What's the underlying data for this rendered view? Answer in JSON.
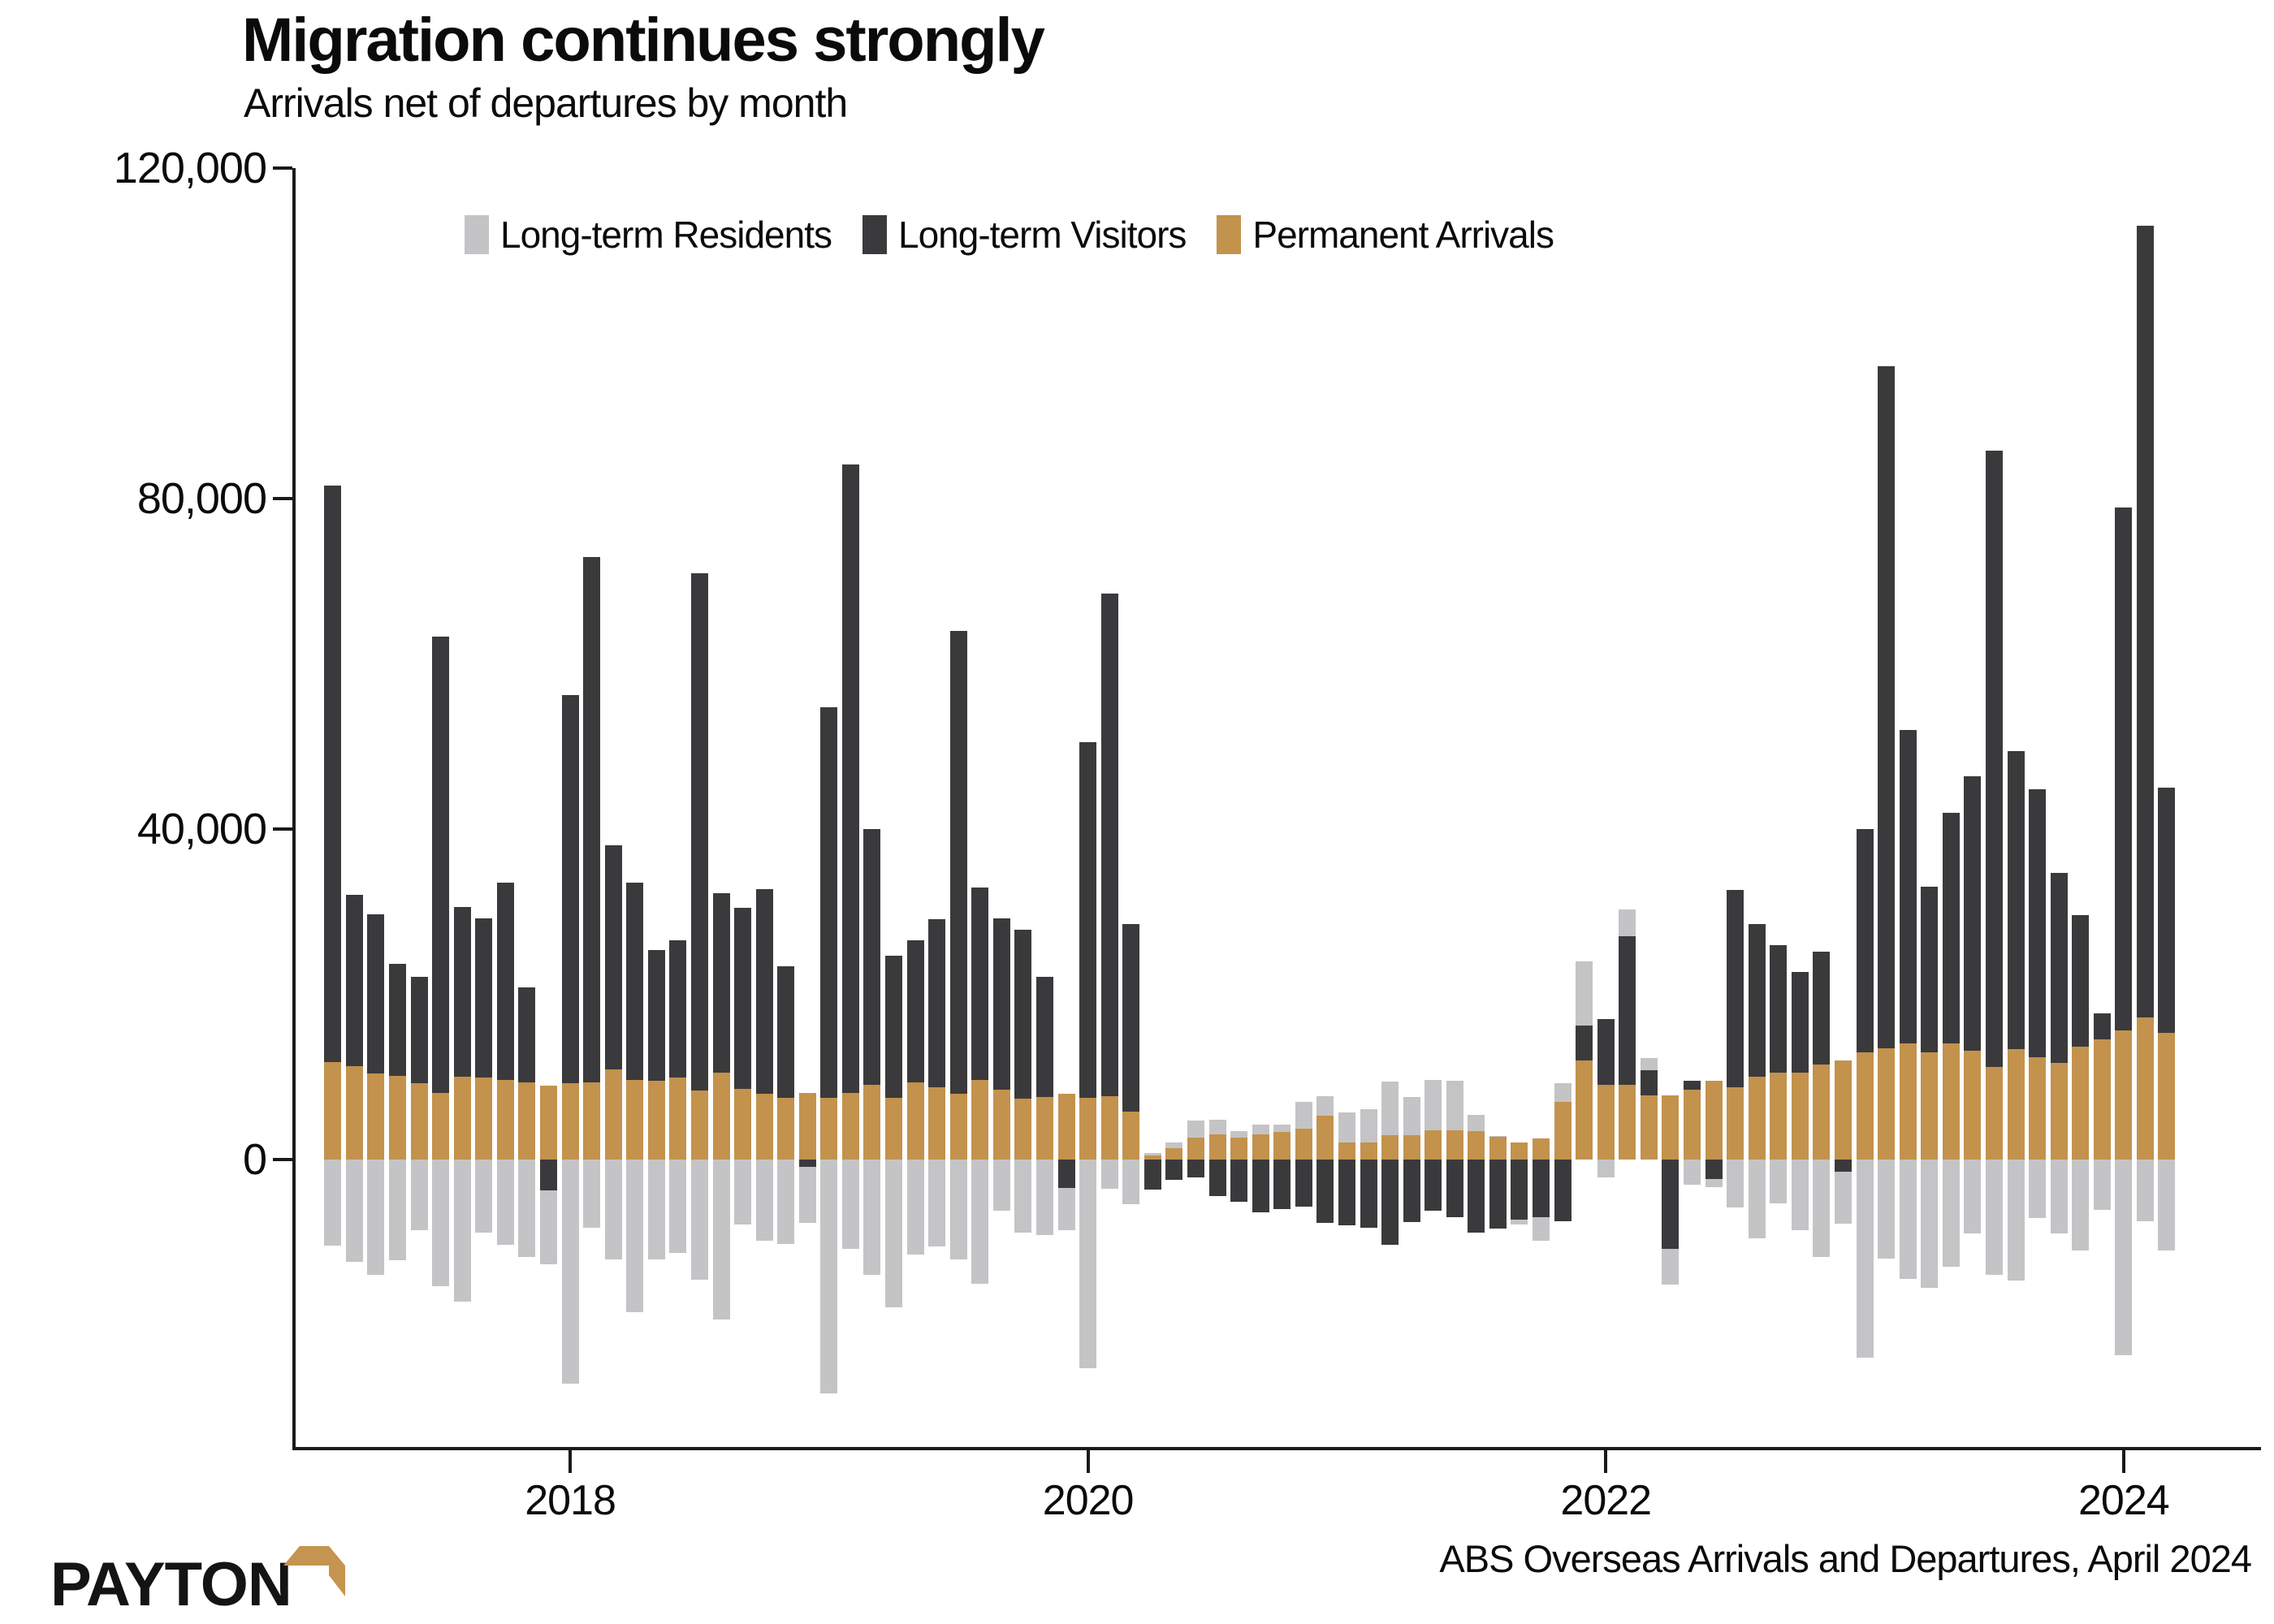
{
  "chart_data": {
    "type": "bar",
    "stacked": true,
    "title": "Migration continues strongly",
    "subtitle": "Arrivals net of departures by month",
    "source_note": "ABS Overseas Arrivals and Departures, April 2024",
    "legend_position": "top",
    "grid": false,
    "ylim": [
      -34800,
      120000
    ],
    "y_ticks": [
      0,
      40000,
      80000,
      120000
    ],
    "y_tick_labels": [
      "0",
      "40,000",
      "80,000",
      "120,000"
    ],
    "x_tick_labels": [
      "2018",
      "2020",
      "2022",
      "2024"
    ],
    "x_tick_month_index": [
      11,
      35,
      59,
      83
    ],
    "months": [
      "2017-02",
      "2017-03",
      "2017-04",
      "2017-05",
      "2017-06",
      "2017-07",
      "2017-08",
      "2017-09",
      "2017-10",
      "2017-11",
      "2017-12",
      "2018-01",
      "2018-02",
      "2018-03",
      "2018-04",
      "2018-05",
      "2018-06",
      "2018-07",
      "2018-08",
      "2018-09",
      "2018-10",
      "2018-11",
      "2018-12",
      "2019-01",
      "2019-02",
      "2019-03",
      "2019-04",
      "2019-05",
      "2019-06",
      "2019-07",
      "2019-08",
      "2019-09",
      "2019-10",
      "2019-11",
      "2019-12",
      "2020-01",
      "2020-02",
      "2020-03",
      "2020-04",
      "2020-05",
      "2020-06",
      "2020-07",
      "2020-08",
      "2020-09",
      "2020-10",
      "2020-11",
      "2020-12",
      "2021-01",
      "2021-02",
      "2021-03",
      "2021-04",
      "2021-05",
      "2021-06",
      "2021-07",
      "2021-08",
      "2021-09",
      "2021-10",
      "2021-11",
      "2021-12",
      "2022-01",
      "2022-02",
      "2022-03",
      "2022-04",
      "2022-05",
      "2022-06",
      "2022-07",
      "2022-08",
      "2022-09",
      "2022-10",
      "2022-11",
      "2022-12",
      "2023-01",
      "2023-02",
      "2023-03",
      "2023-04",
      "2023-05",
      "2023-06",
      "2023-07",
      "2023-08",
      "2023-09",
      "2023-10",
      "2023-11",
      "2023-12",
      "2024-01",
      "2024-02",
      "2024-03"
    ],
    "series": [
      {
        "name": "Permanent Arrivals",
        "color": "#C3924C",
        "values": [
          11800,
          11300,
          10400,
          10100,
          9200,
          8100,
          10000,
          9900,
          9600,
          9300,
          8900,
          9200,
          9300,
          10900,
          9600,
          9500,
          9900,
          8300,
          10500,
          8500,
          8000,
          7500,
          8100,
          7500,
          8100,
          9000,
          7500,
          9300,
          8700,
          8000,
          9600,
          8400,
          7400,
          7600,
          8000,
          7500,
          7700,
          5800,
          500,
          1400,
          2600,
          3000,
          2600,
          3000,
          3300,
          3700,
          5300,
          2100,
          2100,
          2900,
          2900,
          3500,
          3500,
          3400,
          2700,
          2100,
          2500,
          7000,
          12000,
          9000,
          9000,
          7800,
          7800,
          8400,
          9500,
          8700,
          10000,
          10500,
          10500,
          11500,
          12000,
          13000,
          13500,
          14000,
          13000,
          14000,
          13200,
          11200,
          13400,
          12400,
          11700,
          13700,
          14500,
          15600,
          17200,
          15300
        ]
      },
      {
        "name": "Long-term Visitors",
        "color": "#3A3A3C",
        "values": [
          69800,
          20700,
          19300,
          13600,
          12900,
          55200,
          20600,
          19300,
          23900,
          11500,
          -3700,
          47000,
          63600,
          27100,
          23900,
          15900,
          16600,
          62700,
          21700,
          22000,
          24700,
          15900,
          -900,
          47200,
          76000,
          31000,
          17200,
          17200,
          20400,
          56000,
          23300,
          20800,
          20400,
          14500,
          -3400,
          43000,
          60800,
          22700,
          -3600,
          -2500,
          -2200,
          -4400,
          -5100,
          -6400,
          -6000,
          -5700,
          -7700,
          -8000,
          -8300,
          -10300,
          -7600,
          -6200,
          -7000,
          -8900,
          -8400,
          -7300,
          -7000,
          -7500,
          4200,
          8000,
          18000,
          3000,
          -10800,
          1100,
          -2400,
          23900,
          18500,
          15400,
          12200,
          13700,
          -1500,
          27000,
          82500,
          38000,
          20000,
          28000,
          33200,
          74600,
          36000,
          32400,
          23000,
          15900,
          3200,
          63300,
          95800,
          29700
        ]
      },
      {
        "name": "Long-term Residents",
        "color": "#C4C4C6",
        "values": [
          -10400,
          -12400,
          -14000,
          -12200,
          -8600,
          -15300,
          -17200,
          -8900,
          -10300,
          -11800,
          -9000,
          -27100,
          -8300,
          -12100,
          -18500,
          -12100,
          -11300,
          -14600,
          -19400,
          -7900,
          -9800,
          -10200,
          -6800,
          -28300,
          -10800,
          -14000,
          -17900,
          -11500,
          -10500,
          -12100,
          -15000,
          -6200,
          -8900,
          -9100,
          -5200,
          -25300,
          -3500,
          -5400,
          300,
          700,
          2100,
          1800,
          800,
          1200,
          900,
          3300,
          2400,
          3600,
          4000,
          6500,
          4700,
          6100,
          6000,
          2000,
          100,
          -600,
          -2800,
          2200,
          7800,
          -2200,
          3300,
          1500,
          -4300,
          -3100,
          -900,
          -5800,
          -9500,
          -5300,
          -8600,
          -11800,
          -6300,
          -24000,
          -12000,
          -14500,
          -15500,
          -13000,
          -9000,
          -14000,
          -14700,
          -7100,
          -9000,
          -11000,
          -6100,
          -23700,
          -7500,
          -11000
        ]
      }
    ]
  },
  "legend": [
    {
      "label": "Long-term Residents",
      "color": "#C4C4C6"
    },
    {
      "label": "Long-term Visitors",
      "color": "#3A3A3C"
    },
    {
      "label": "Permanent Arrivals",
      "color": "#C3924C"
    }
  ],
  "logo": {
    "text": "PAYTON",
    "accent_color": "#C59450"
  }
}
